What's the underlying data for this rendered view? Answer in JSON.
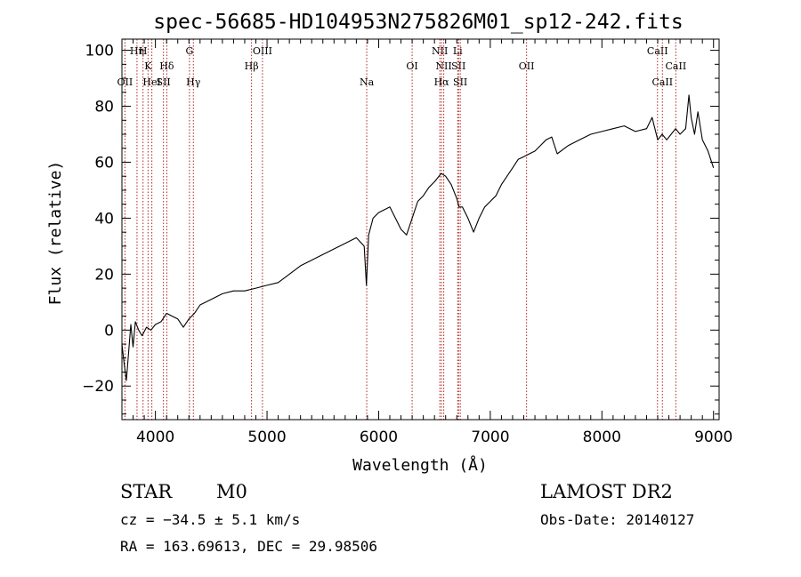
{
  "chart_data": {
    "type": "line",
    "title": "spec-56685-HD104953N275826M01_sp12-242.fits",
    "xlabel": "Wavelength (Å)",
    "ylabel": "Flux (relative)",
    "xlim": [
      3700,
      9050
    ],
    "ylim": [
      -32,
      104
    ],
    "x_ticks": [
      4000,
      5000,
      6000,
      7000,
      8000,
      9000
    ],
    "y_ticks": [
      -20,
      0,
      20,
      40,
      60,
      80,
      100
    ],
    "grid": false,
    "lines": [
      {
        "label": "OII",
        "x": 3727,
        "row": 3
      },
      {
        "label": "Hη",
        "x": 3835,
        "row": 1
      },
      {
        "label": "H",
        "x": 3889,
        "row": 1
      },
      {
        "label": "K",
        "x": 3934,
        "row": 2
      },
      {
        "label": "HeI",
        "x": 3968,
        "row": 3
      },
      {
        "label": "SII",
        "x": 4072,
        "row": 3
      },
      {
        "label": "Hδ",
        "x": 4102,
        "row": 2
      },
      {
        "label": "G",
        "x": 4305,
        "row": 1
      },
      {
        "label": "Hγ",
        "x": 4340,
        "row": 3
      },
      {
        "label": "Hβ",
        "x": 4861,
        "row": 2
      },
      {
        "label": "OIII",
        "x": 4959,
        "row": 1
      },
      {
        "label": "Na",
        "x": 5893,
        "row": 3
      },
      {
        "label": "OI",
        "x": 6300,
        "row": 2
      },
      {
        "label": "NII",
        "x": 6548,
        "row": 1
      },
      {
        "label": "NII",
        "x": 6583,
        "row": 2
      },
      {
        "label": "Hα",
        "x": 6563,
        "row": 3
      },
      {
        "label": "Li",
        "x": 6708,
        "row": 1
      },
      {
        "label": "SII",
        "x": 6716,
        "row": 2
      },
      {
        "label": "SII",
        "x": 6731,
        "row": 3
      },
      {
        "label": "OII",
        "x": 7325,
        "row": 2
      },
      {
        "label": "CaII",
        "x": 8498,
        "row": 1
      },
      {
        "label": "CaII",
        "x": 8542,
        "row": 3
      },
      {
        "label": "CaII",
        "x": 8662,
        "row": 2
      }
    ],
    "series": [
      {
        "color": "#000000",
        "points": [
          [
            3700,
            -5
          ],
          [
            3720,
            -12
          ],
          [
            3740,
            -18
          ],
          [
            3760,
            -8
          ],
          [
            3780,
            2
          ],
          [
            3800,
            -6
          ],
          [
            3820,
            3
          ],
          [
            3850,
            0
          ],
          [
            3880,
            -2
          ],
          [
            3920,
            1
          ],
          [
            3960,
            0
          ],
          [
            4000,
            2
          ],
          [
            4050,
            3
          ],
          [
            4100,
            6
          ],
          [
            4150,
            5
          ],
          [
            4200,
            4
          ],
          [
            4250,
            1
          ],
          [
            4300,
            4
          ],
          [
            4350,
            6
          ],
          [
            4400,
            9
          ],
          [
            4500,
            11
          ],
          [
            4600,
            13
          ],
          [
            4700,
            14
          ],
          [
            4800,
            14
          ],
          [
            4900,
            15
          ],
          [
            5000,
            16
          ],
          [
            5100,
            17
          ],
          [
            5200,
            20
          ],
          [
            5300,
            23
          ],
          [
            5400,
            25
          ],
          [
            5500,
            27
          ],
          [
            5600,
            29
          ],
          [
            5700,
            31
          ],
          [
            5800,
            33
          ],
          [
            5870,
            30
          ],
          [
            5890,
            16
          ],
          [
            5910,
            34
          ],
          [
            5950,
            40
          ],
          [
            6000,
            42
          ],
          [
            6050,
            43
          ],
          [
            6100,
            44
          ],
          [
            6150,
            40
          ],
          [
            6200,
            36
          ],
          [
            6250,
            34
          ],
          [
            6300,
            40
          ],
          [
            6350,
            46
          ],
          [
            6400,
            48
          ],
          [
            6450,
            51
          ],
          [
            6500,
            53
          ],
          [
            6560,
            56
          ],
          [
            6600,
            55
          ],
          [
            6650,
            52
          ],
          [
            6700,
            47
          ],
          [
            6720,
            44
          ],
          [
            6750,
            44
          ],
          [
            6800,
            40
          ],
          [
            6850,
            35
          ],
          [
            6900,
            40
          ],
          [
            6950,
            44
          ],
          [
            7000,
            46
          ],
          [
            7050,
            48
          ],
          [
            7100,
            52
          ],
          [
            7150,
            55
          ],
          [
            7200,
            58
          ],
          [
            7250,
            61
          ],
          [
            7300,
            62
          ],
          [
            7350,
            63
          ],
          [
            7400,
            64
          ],
          [
            7450,
            66
          ],
          [
            7500,
            68
          ],
          [
            7550,
            69
          ],
          [
            7600,
            63
          ],
          [
            7700,
            66
          ],
          [
            7800,
            68
          ],
          [
            7900,
            70
          ],
          [
            8000,
            71
          ],
          [
            8100,
            72
          ],
          [
            8200,
            73
          ],
          [
            8300,
            71
          ],
          [
            8400,
            72
          ],
          [
            8450,
            76
          ],
          [
            8500,
            68
          ],
          [
            8540,
            70
          ],
          [
            8580,
            68
          ],
          [
            8620,
            70
          ],
          [
            8660,
            72
          ],
          [
            8700,
            70
          ],
          [
            8750,
            72
          ],
          [
            8780,
            84
          ],
          [
            8800,
            76
          ],
          [
            8830,
            70
          ],
          [
            8860,
            78
          ],
          [
            8900,
            68
          ],
          [
            8950,
            64
          ],
          [
            9000,
            58
          ]
        ]
      }
    ],
    "info": {
      "object_class": "STAR",
      "subclass": "M0",
      "survey": "LAMOST DR2",
      "cz": "cz = −34.5 ± 5.1 km/s",
      "obs_date": "Obs-Date: 20140127",
      "coords": "RA = 163.69613, DEC =  29.98506"
    }
  }
}
